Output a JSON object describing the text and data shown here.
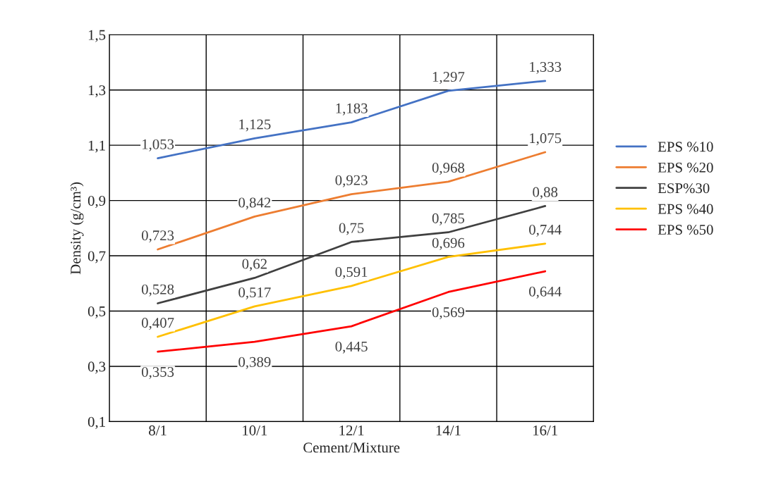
{
  "chart_data": {
    "type": "line",
    "xlabel": "Cement/Mixture",
    "ylabel": "Density (g/cm³)",
    "categories": [
      "8/1",
      "10/1",
      "12/1",
      "14/1",
      "16/1"
    ],
    "ylim": [
      0.1,
      1.5
    ],
    "yticks": [
      {
        "value": 0.1,
        "label": "0,1"
      },
      {
        "value": 0.3,
        "label": "0,3"
      },
      {
        "value": 0.5,
        "label": "0,5"
      },
      {
        "value": 0.7,
        "label": "0,7"
      },
      {
        "value": 0.9,
        "label": "0,9"
      },
      {
        "value": 1.1,
        "label": "1,1"
      },
      {
        "value": 1.3,
        "label": "1,3"
      },
      {
        "value": 1.5,
        "label": "1,5"
      }
    ],
    "grid": true,
    "legend": "right",
    "marker": "none",
    "line_style": "solid",
    "series": [
      {
        "name": "EPS %10",
        "color": "#4472c4",
        "values": [
          1.053,
          1.125,
          1.183,
          1.297,
          1.333
        ],
        "value_labels": [
          "1,053",
          "1,125",
          "1,183",
          "1,297",
          "1,333"
        ]
      },
      {
        "name": "EPS %20",
        "color": "#ed7d31",
        "values": [
          0.723,
          0.842,
          0.923,
          0.968,
          1.075
        ],
        "value_labels": [
          "0,723",
          "0,842",
          "0,923",
          "0,968",
          "1,075"
        ]
      },
      {
        "name": "ESP%30",
        "color": "#404040",
        "values": [
          0.528,
          0.62,
          0.75,
          0.785,
          0.88
        ],
        "value_labels": [
          "0,528",
          "0,62",
          "0,75",
          "0,785",
          "0,88"
        ]
      },
      {
        "name": "EPS %40",
        "color": "#ffc000",
        "values": [
          0.407,
          0.517,
          0.591,
          0.696,
          0.744
        ],
        "value_labels": [
          "0,407",
          "0,517",
          "0,591",
          "0,696",
          "0,744"
        ]
      },
      {
        "name": "EPS %50",
        "color": "#ff0000",
        "values": [
          0.353,
          0.389,
          0.445,
          0.569,
          0.644
        ],
        "value_labels": [
          "0,353",
          "0,389",
          "0,445",
          "0,569",
          "0,644"
        ]
      }
    ]
  }
}
